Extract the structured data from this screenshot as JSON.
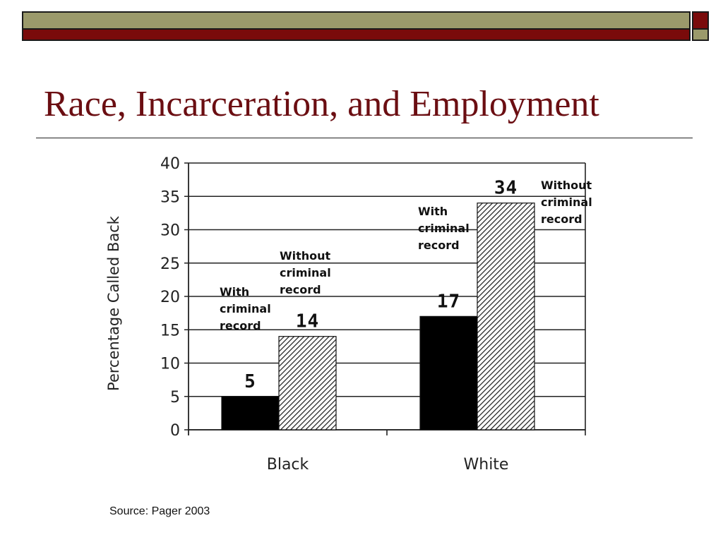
{
  "slide": {
    "title": "Race, Incarceration, and Employment",
    "source": "Source: Pager 2003",
    "colors": {
      "title": "#6b0e12",
      "band_olive": "#9b9a6b",
      "band_maroon": "#7a0b0b"
    }
  },
  "chart_data": {
    "type": "bar",
    "title": "",
    "xlabel": "",
    "ylabel": "Percentage Called Back",
    "categories": [
      "Black",
      "White"
    ],
    "series": [
      {
        "fill": "solid-black",
        "values": [
          5,
          17
        ]
      },
      {
        "fill": "hatched",
        "values": [
          14,
          34
        ]
      }
    ],
    "ylim": [
      0,
      40
    ],
    "yticks": [
      0,
      5,
      10,
      15,
      20,
      25,
      30,
      35,
      40
    ],
    "grid": true,
    "annotations": [
      {
        "text": "With\ncriminal\nrecord",
        "category": "Black",
        "series": 0
      },
      {
        "text": "Without\ncriminal\nrecord",
        "category": "Black",
        "series": 1
      },
      {
        "text": "With\ncriminal\nrecord",
        "category": "White",
        "series": 0
      },
      {
        "text": "Without\ncriminal\nrecord",
        "category": "White",
        "series": 1
      }
    ]
  }
}
